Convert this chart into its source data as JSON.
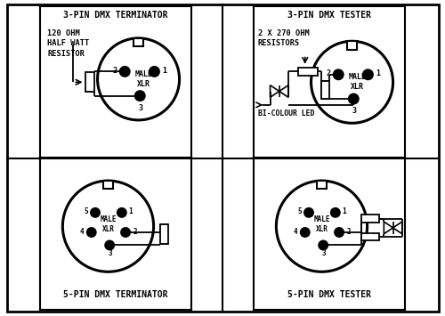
{
  "bg_color": "#ffffff",
  "title_3pin_term": "3-PIN DMX TERMINATOR",
  "title_3pin_test": "3-PIN DMX TESTER",
  "title_5pin_term": "5-PIN DMX TERMINATOR",
  "title_5pin_test": "5-PIN DMX TESTER",
  "label_120ohm": "120 OHM\nHALF WATT\nRESISTOR",
  "label_270ohm": "2 X 270 OHM\nRESISTORS",
  "label_bicolour": "BI-COLOUR LED",
  "label_male_xlr": "MALE\nXLR",
  "font_size_title": 7.0,
  "font_size_label": 6.2,
  "font_size_pin": 6.0
}
